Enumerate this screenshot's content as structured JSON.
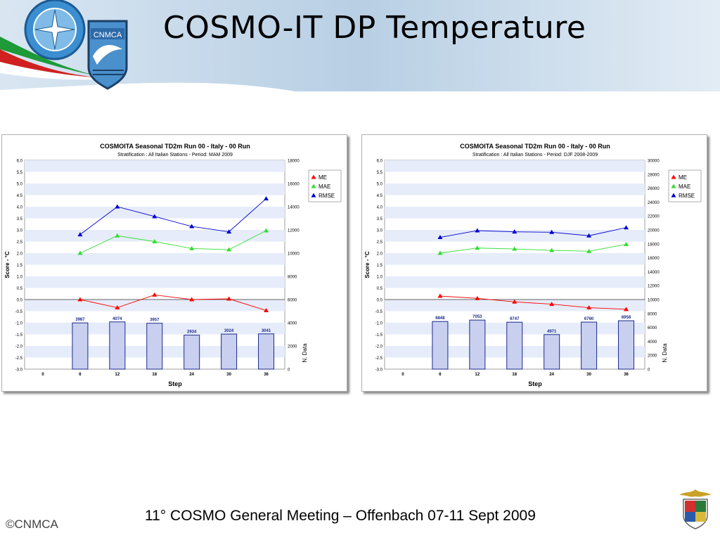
{
  "slide": {
    "title": "COSMO-IT DP Temperature",
    "footer": "11° COSMO General Meeting – Offenbach 07-11 Sept 2009",
    "logo_text": "CNMCA",
    "copyright_logo": "©CNMCA"
  },
  "colors": {
    "me": "#ff0000",
    "mae": "#33dd33",
    "rmse": "#0000cc",
    "band": "#e6ecfa",
    "bar": "#c9cfef"
  },
  "chart_data": [
    {
      "type": "line",
      "title": "COSMOITA Seasonal TD2m Run 00 - Italy - 00 Run",
      "subtitle": "Stratification : All Italian Stations - Period: MAM 2009",
      "xlabel": "Step",
      "ylabel": "Score - °C",
      "y2label": "N. Data",
      "x_ticks": [
        "0",
        "6",
        "12",
        "18",
        "24",
        "30",
        "36"
      ],
      "ylim": [
        -3.0,
        6.0
      ],
      "y_ticks": [
        "6.0",
        "5.5",
        "5.0",
        "4.5",
        "4.0",
        "3.5",
        "3.0",
        "2.5",
        "2.0",
        "1.5",
        "1.0",
        "0.5",
        "0.0",
        "-0.5",
        "-1.0",
        "-1.5",
        "-2.0",
        "-2.5",
        "-3.0"
      ],
      "y2lim": [
        0,
        18000
      ],
      "y2_ticks": [
        "18000",
        "16000",
        "14000",
        "12000",
        "10000",
        "8000",
        "6000",
        "4000",
        "2000",
        "0"
      ],
      "x": [
        6,
        12,
        18,
        24,
        30,
        36
      ],
      "series": [
        {
          "name": "ME",
          "values": [
            0.0,
            -0.35,
            0.2,
            0.0,
            0.03,
            -0.47
          ]
        },
        {
          "name": "MAE",
          "values": [
            2.0,
            2.75,
            2.5,
            2.2,
            2.15,
            2.97
          ]
        },
        {
          "name": "RMSE",
          "values": [
            2.8,
            4.0,
            3.58,
            3.15,
            2.92,
            4.35
          ]
        }
      ],
      "bars": {
        "name": "N. Data",
        "values": [
          3987,
          4074,
          3957,
          2934,
          3024,
          3041
        ],
        "labels": [
          "3987",
          "4074",
          "3957",
          "2934",
          "3024",
          "3041"
        ]
      },
      "legend": "top-right",
      "grid": true
    },
    {
      "type": "line",
      "title": "COSMOITA Seasonal TD2m Run 00 - Italy - 00 Run",
      "subtitle": "Stratification : All Italian Stations - Period: DJF 2008-2009",
      "xlabel": "Step",
      "ylabel": "Score - °C",
      "y2label": "N. Data",
      "x_ticks": [
        "0",
        "6",
        "12",
        "18",
        "24",
        "30",
        "36"
      ],
      "ylim": [
        -3.0,
        6.0
      ],
      "y_ticks": [
        "6.0",
        "5.5",
        "5.0",
        "4.5",
        "4.0",
        "3.5",
        "3.0",
        "2.5",
        "2.0",
        "1.5",
        "1.0",
        "0.5",
        "0.0",
        "-0.5",
        "-1.0",
        "-1.5",
        "-2.0",
        "-2.5",
        "-3.0"
      ],
      "y2lim": [
        0,
        30000
      ],
      "y2_ticks": [
        "30000",
        "28000",
        "26000",
        "24000",
        "22000",
        "20000",
        "18000",
        "16000",
        "14000",
        "12000",
        "10000",
        "8000",
        "6000",
        "4000",
        "2000",
        "0"
      ],
      "x": [
        6,
        12,
        18,
        24,
        30,
        36
      ],
      "series": [
        {
          "name": "ME",
          "values": [
            0.15,
            0.05,
            -0.1,
            -0.2,
            -0.35,
            -0.42
          ]
        },
        {
          "name": "MAE",
          "values": [
            2.0,
            2.22,
            2.18,
            2.12,
            2.08,
            2.38
          ]
        },
        {
          "name": "RMSE",
          "values": [
            2.68,
            2.97,
            2.92,
            2.9,
            2.75,
            3.1
          ]
        }
      ],
      "bars": {
        "name": "N. Data",
        "values": [
          6848,
          7053,
          6747,
          4971,
          6760,
          6958
        ],
        "labels": [
          "6848",
          "7053",
          "6747",
          "4971",
          "6760",
          "6958"
        ]
      },
      "legend": "top-right",
      "grid": true
    }
  ]
}
